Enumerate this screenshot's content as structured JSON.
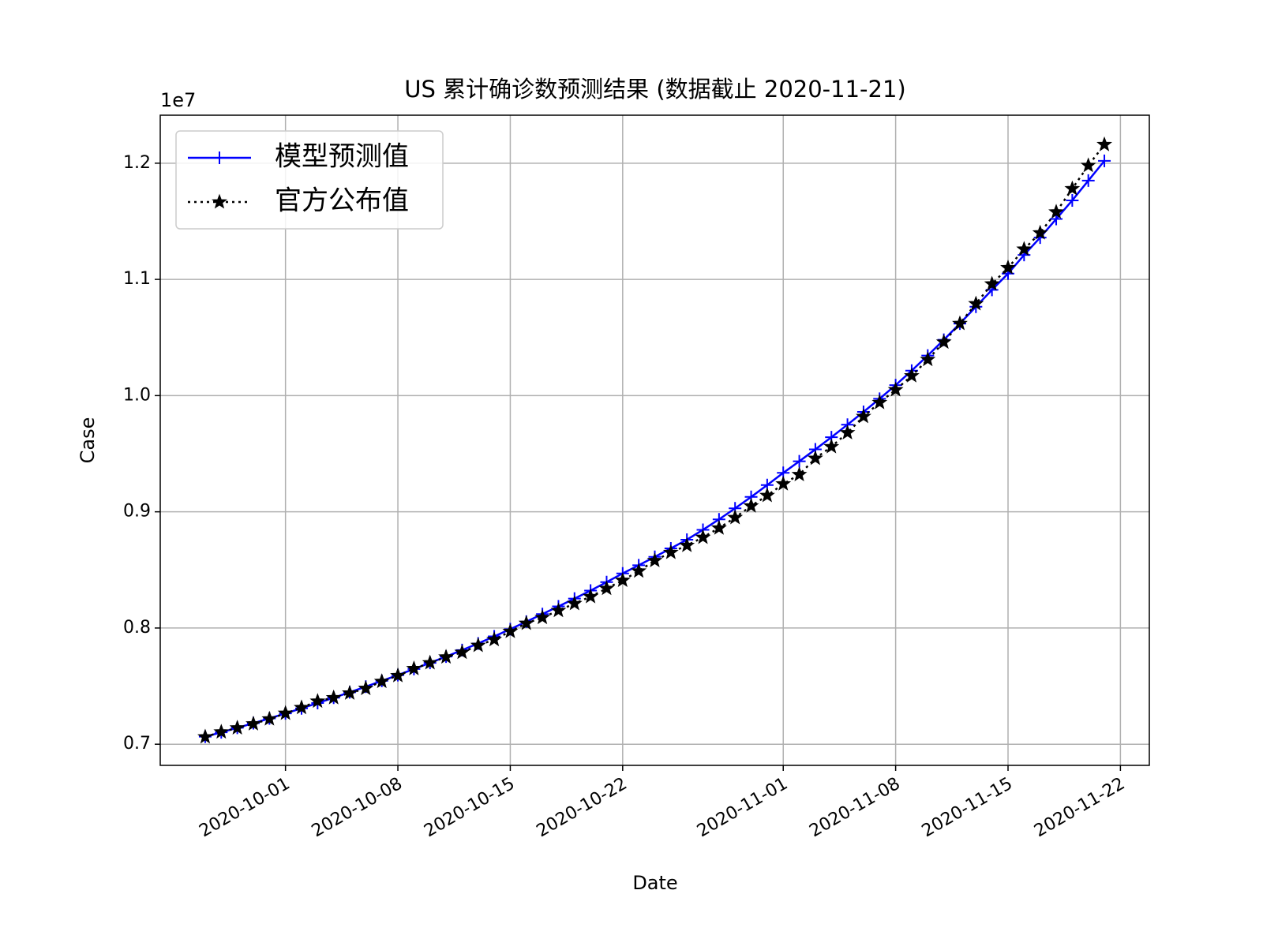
{
  "chart_data": {
    "type": "line",
    "title": "US 累计确诊数预测结果 (数据截止 2020-11-21)",
    "xlabel": "Date",
    "ylabel": "Case",
    "y_offset_label": "1e7",
    "x": [
      "2020-09-26",
      "2020-09-27",
      "2020-09-28",
      "2020-09-29",
      "2020-09-30",
      "2020-10-01",
      "2020-10-02",
      "2020-10-03",
      "2020-10-04",
      "2020-10-05",
      "2020-10-06",
      "2020-10-07",
      "2020-10-08",
      "2020-10-09",
      "2020-10-10",
      "2020-10-11",
      "2020-10-12",
      "2020-10-13",
      "2020-10-14",
      "2020-10-15",
      "2020-10-16",
      "2020-10-17",
      "2020-10-18",
      "2020-10-19",
      "2020-10-20",
      "2020-10-21",
      "2020-10-22",
      "2020-10-23",
      "2020-10-24",
      "2020-10-25",
      "2020-10-26",
      "2020-10-27",
      "2020-10-28",
      "2020-10-29",
      "2020-10-30",
      "2020-10-31",
      "2020-11-01",
      "2020-11-02",
      "2020-11-03",
      "2020-11-04",
      "2020-11-05",
      "2020-11-06",
      "2020-11-07",
      "2020-11-08",
      "2020-11-09",
      "2020-11-10",
      "2020-11-11",
      "2020-11-12",
      "2020-11-13",
      "2020-11-14",
      "2020-11-15",
      "2020-11-16",
      "2020-11-17",
      "2020-11-18",
      "2020-11-19",
      "2020-11-20",
      "2020-11-21"
    ],
    "series": [
      {
        "name": "模型预测值",
        "color": "#0000ff",
        "marker": "plus",
        "linestyle": "solid",
        "values": [
          7065000,
          7102000,
          7141000,
          7181000,
          7222000,
          7265000,
          7309000,
          7354000,
          7400000,
          7447000,
          7495000,
          7545000,
          7595000,
          7647000,
          7700000,
          7754000,
          7810000,
          7867000,
          7928000,
          7990000,
          8055000,
          8120000,
          8186000,
          8253000,
          8322000,
          8395000,
          8470000,
          8540000,
          8612000,
          8685000,
          8760000,
          8845000,
          8935000,
          9030000,
          9128000,
          9230000,
          9335000,
          9435000,
          9537000,
          9642000,
          9750000,
          9860000,
          9973000,
          10090000,
          10215000,
          10345000,
          10480000,
          10620000,
          10765000,
          10910000,
          11050000,
          11210000,
          11360000,
          11520000,
          11680000,
          11850000,
          12020000
        ]
      },
      {
        "name": "官方公布值",
        "color": "#000000",
        "marker": "star",
        "linestyle": "dotted",
        "values": [
          7063000,
          7105000,
          7140000,
          7175000,
          7217000,
          7266000,
          7315000,
          7370000,
          7400000,
          7440000,
          7480000,
          7540000,
          7590000,
          7650000,
          7700000,
          7750000,
          7790000,
          7850000,
          7900000,
          7970000,
          8040000,
          8090000,
          8150000,
          8210000,
          8270000,
          8340000,
          8410000,
          8490000,
          8580000,
          8650000,
          8710000,
          8780000,
          8860000,
          8950000,
          9050000,
          9140000,
          9240000,
          9320000,
          9460000,
          9560000,
          9680000,
          9820000,
          9940000,
          10050000,
          10170000,
          10310000,
          10460000,
          10620000,
          10790000,
          10960000,
          11100000,
          11260000,
          11400000,
          11580000,
          11780000,
          11980000,
          12160000
        ]
      }
    ],
    "xlim": [
      "2020-09-23T04:48:00Z",
      "2020-11-23T19:12:00Z"
    ],
    "xticks": [
      "2020-10-01",
      "2020-10-08",
      "2020-10-15",
      "2020-10-22",
      "2020-11-01",
      "2020-11-08",
      "2020-11-15",
      "2020-11-22"
    ],
    "ylim": [
      6818000,
      12413000
    ],
    "yticks": [
      {
        "value": 7000000,
        "label": "0.7"
      },
      {
        "value": 8000000,
        "label": "0.8"
      },
      {
        "value": 9000000,
        "label": "0.9"
      },
      {
        "value": 10000000,
        "label": "1.0"
      },
      {
        "value": 11000000,
        "label": "1.1"
      },
      {
        "value": 12000000,
        "label": "1.2"
      }
    ],
    "grid": true,
    "legend": "upper left"
  }
}
